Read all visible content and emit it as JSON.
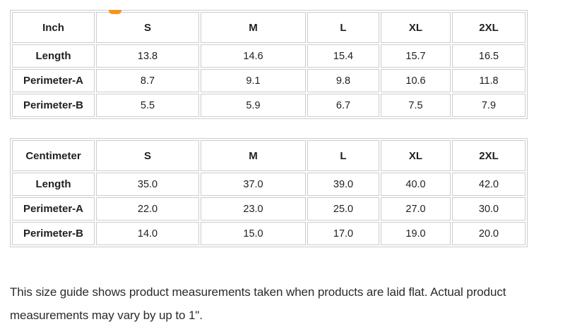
{
  "page": {
    "accent_color": "#f7941e",
    "border_color": "#cccccc",
    "note": "This size guide shows product measurements taken when products are laid flat. Actual product measurements may vary by up to 1\"."
  },
  "tables": [
    {
      "unit": "Inch",
      "columns": [
        "S",
        "M",
        "L",
        "XL",
        "2XL"
      ],
      "rows": [
        {
          "label": "Length",
          "values": [
            "13.8",
            "14.6",
            "15.4",
            "15.7",
            "16.5"
          ]
        },
        {
          "label": "Perimeter-A",
          "values": [
            "8.7",
            "9.1",
            "9.8",
            "10.6",
            "11.8"
          ]
        },
        {
          "label": "Perimeter-B",
          "values": [
            "5.5",
            "5.9",
            "6.7",
            "7.5",
            "7.9"
          ]
        }
      ]
    },
    {
      "unit": "Centimeter",
      "columns": [
        "S",
        "M",
        "L",
        "XL",
        "2XL"
      ],
      "rows": [
        {
          "label": "Length",
          "values": [
            "35.0",
            "37.0",
            "39.0",
            "40.0",
            "42.0"
          ]
        },
        {
          "label": "Perimeter-A",
          "values": [
            "22.0",
            "23.0",
            "25.0",
            "27.0",
            "30.0"
          ]
        },
        {
          "label": "Perimeter-B",
          "values": [
            "14.0",
            "15.0",
            "17.0",
            "19.0",
            "20.0"
          ]
        }
      ]
    }
  ]
}
